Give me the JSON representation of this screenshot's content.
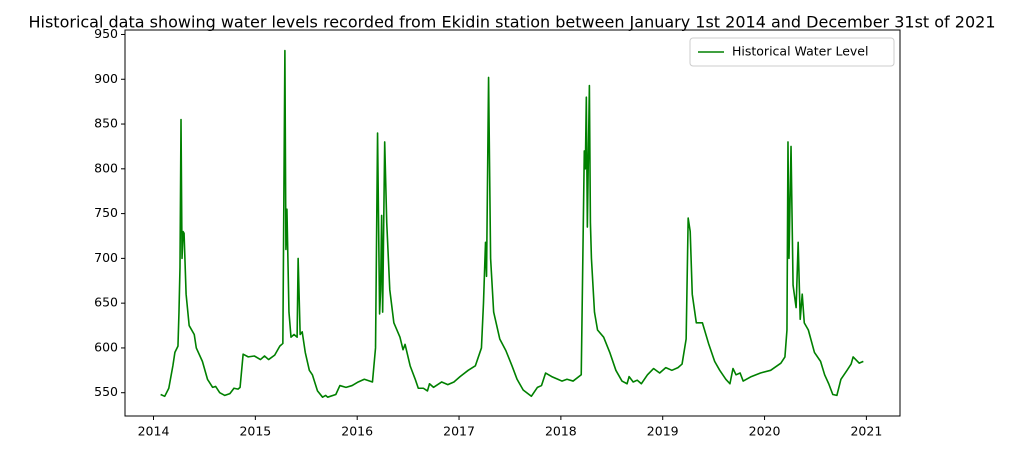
{
  "chart_data": {
    "type": "line",
    "title": "Historical data showing water levels recorded from Ekidin station between January 1st 2014 and December 31st of 2021",
    "x": [
      2014.07,
      2014.11,
      2014.15,
      2014.19,
      2014.21,
      2014.24,
      2014.25,
      2014.26,
      2014.27,
      2014.28,
      2014.29,
      2014.3,
      2014.32,
      2014.35,
      2014.4,
      2014.42,
      2014.48,
      2014.53,
      2014.58,
      2014.61,
      2014.65,
      2014.7,
      2014.75,
      2014.79,
      2014.83,
      2014.85,
      2014.88,
      2014.93,
      2014.99,
      2015.05,
      2015.09,
      2015.13,
      2015.19,
      2015.24,
      2015.27,
      2015.29,
      2015.3,
      2015.31,
      2015.33,
      2015.35,
      2015.38,
      2015.41,
      2015.42,
      2015.44,
      2015.46,
      2015.49,
      2015.53,
      2015.56,
      2015.61,
      2015.66,
      2015.69,
      2015.71,
      2015.79,
      2015.83,
      2015.89,
      2015.95,
      2016.01,
      2016.07,
      2016.15,
      2016.18,
      2016.2,
      2016.22,
      2016.23,
      2016.24,
      2016.25,
      2016.27,
      2016.29,
      2016.32,
      2016.36,
      2016.42,
      2016.45,
      2016.47,
      2016.52,
      2016.57,
      2016.6,
      2016.65,
      2016.69,
      2016.71,
      2016.75,
      2016.83,
      2016.89,
      2016.95,
      2017.01,
      2017.09,
      2017.16,
      2017.22,
      2017.24,
      2017.26,
      2017.27,
      2017.29,
      2017.31,
      2017.34,
      2017.4,
      2017.46,
      2017.52,
      2017.57,
      2017.63,
      2017.71,
      2017.77,
      2017.81,
      2017.85,
      2017.91,
      2017.97,
      2018.01,
      2018.06,
      2018.12,
      2018.2,
      2018.23,
      2018.24,
      2018.25,
      2018.26,
      2018.28,
      2018.29,
      2018.3,
      2018.33,
      2018.36,
      2018.42,
      2018.48,
      2018.54,
      2018.6,
      2018.65,
      2018.67,
      2018.71,
      2018.75,
      2018.79,
      2018.85,
      2018.91,
      2018.97,
      2019.03,
      2019.09,
      2019.15,
      2019.19,
      2019.23,
      2019.25,
      2019.27,
      2019.29,
      2019.33,
      2019.39,
      2019.45,
      2019.51,
      2019.56,
      2019.62,
      2019.66,
      2019.69,
      2019.72,
      2019.76,
      2019.79,
      2019.87,
      2019.96,
      2020.06,
      2020.16,
      2020.2,
      2020.22,
      2020.23,
      2020.24,
      2020.26,
      2020.28,
      2020.31,
      2020.33,
      2020.35,
      2020.37,
      2020.39,
      2020.43,
      2020.49,
      2020.55,
      2020.59,
      2020.63,
      2020.67,
      2020.71,
      2020.75,
      2020.81,
      2020.85,
      2020.87,
      2020.93,
      2020.97
    ],
    "series": [
      {
        "name": "Historical Water Level",
        "color": "#008000",
        "values": [
          548,
          546,
          555,
          580,
          595,
          602,
          640,
          690,
          855,
          700,
          730,
          728,
          660,
          625,
          615,
          600,
          585,
          565,
          556,
          557,
          550,
          547,
          549,
          555,
          554,
          556,
          593,
          590,
          591,
          587,
          591,
          587,
          592,
          602,
          605,
          932,
          710,
          755,
          640,
          612,
          615,
          612,
          700,
          615,
          618,
          595,
          575,
          570,
          552,
          545,
          547,
          545,
          548,
          558,
          556,
          558,
          562,
          565,
          562,
          600,
          840,
          638,
          665,
          748,
          640,
          830,
          740,
          665,
          628,
          612,
          598,
          604,
          580,
          565,
          555,
          555,
          552,
          560,
          556,
          562,
          559,
          562,
          568,
          575,
          580,
          600,
          650,
          718,
          680,
          902,
          700,
          640,
          610,
          597,
          580,
          565,
          553,
          546,
          556,
          558,
          572,
          568,
          565,
          563,
          565,
          563,
          570,
          820,
          800,
          880,
          735,
          893,
          740,
          700,
          640,
          620,
          612,
          595,
          575,
          563,
          560,
          568,
          562,
          564,
          560,
          570,
          577,
          572,
          578,
          575,
          578,
          582,
          610,
          745,
          730,
          660,
          628,
          628,
          605,
          585,
          575,
          565,
          560,
          577,
          570,
          572,
          563,
          568,
          572,
          575,
          583,
          590,
          620,
          830,
          700,
          825,
          670,
          645,
          718,
          632,
          660,
          628,
          620,
          595,
          585,
          570,
          560,
          548,
          547,
          565,
          575,
          582,
          590,
          583,
          585
        ]
      }
    ],
    "xlim": [
      2013.72,
      2021.33
    ],
    "xticks": [
      2014,
      2015,
      2016,
      2017,
      2018,
      2019,
      2020,
      2021
    ],
    "ylim": [
      524,
      955
    ],
    "yticks": [
      550,
      600,
      650,
      700,
      750,
      800,
      850,
      900,
      950
    ],
    "legend": "upper right"
  }
}
